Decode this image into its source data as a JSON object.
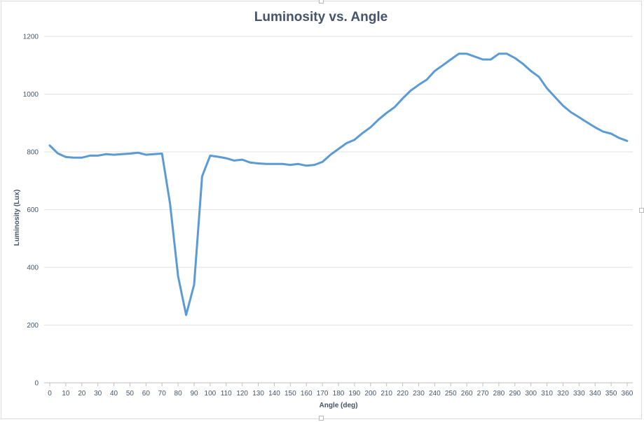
{
  "chart_data": {
    "type": "line",
    "title": "Luminosity vs. Angle",
    "xlabel": "Angle (deg)",
    "ylabel": "Luminosity (Lux)",
    "xlim": [
      0,
      360
    ],
    "ylim": [
      0,
      1200
    ],
    "xticks": [
      0,
      10,
      20,
      30,
      40,
      50,
      60,
      70,
      80,
      90,
      100,
      110,
      120,
      130,
      140,
      150,
      160,
      170,
      180,
      190,
      200,
      210,
      220,
      230,
      240,
      250,
      260,
      270,
      280,
      290,
      300,
      310,
      320,
      330,
      340,
      350,
      360
    ],
    "yticks": [
      0,
      200,
      400,
      600,
      800,
      1000,
      1200
    ],
    "grid": true,
    "legend": "none",
    "colors": {
      "line": "#5b9bd5",
      "text": "#44546a",
      "grid": "#e2e2e2"
    },
    "series": [
      {
        "x": [
          0,
          5,
          10,
          15,
          20,
          25,
          30,
          35,
          40,
          45,
          50,
          55,
          60,
          65,
          70,
          75,
          80,
          85,
          90,
          95,
          100,
          105,
          110,
          115,
          120,
          125,
          130,
          135,
          140,
          145,
          150,
          155,
          160,
          165,
          170,
          175,
          180,
          185,
          190,
          195,
          200,
          205,
          210,
          215,
          220,
          225,
          230,
          235,
          240,
          245,
          250,
          255,
          260,
          265,
          270,
          275,
          280,
          285,
          290,
          295,
          300,
          305,
          310,
          315,
          320,
          325,
          330,
          335,
          340,
          345,
          350,
          355,
          360
        ],
        "values": [
          822,
          795,
          782,
          780,
          780,
          787,
          787,
          792,
          790,
          792,
          794,
          797,
          790,
          792,
          794,
          620,
          370,
          235,
          340,
          715,
          787,
          783,
          778,
          770,
          773,
          763,
          760,
          758,
          758,
          758,
          755,
          758,
          752,
          755,
          765,
          790,
          810,
          830,
          842,
          865,
          885,
          912,
          935,
          955,
          985,
          1012,
          1032,
          1050,
          1080,
          1100,
          1120,
          1140,
          1140,
          1130,
          1120,
          1120,
          1140,
          1140,
          1125,
          1105,
          1080,
          1060,
          1020,
          990,
          960,
          937,
          920,
          902,
          885,
          870,
          863,
          848,
          838
        ]
      }
    ]
  }
}
